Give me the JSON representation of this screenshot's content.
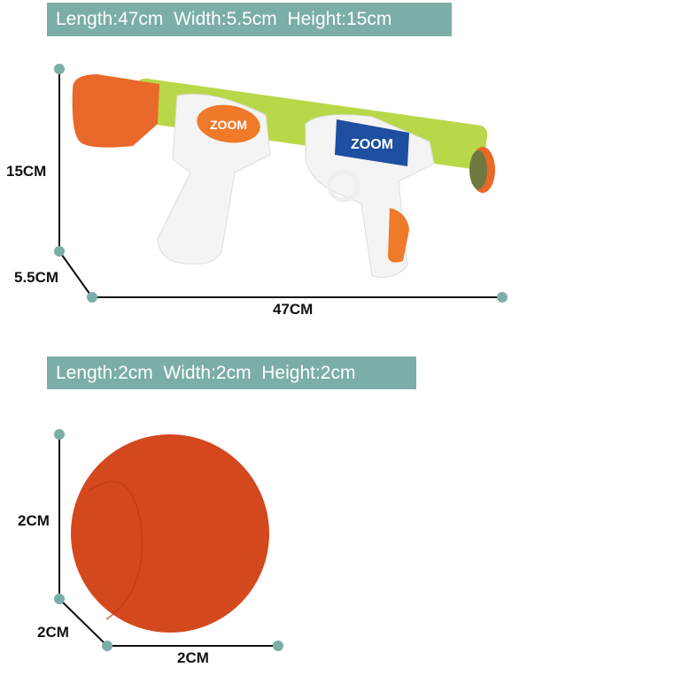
{
  "gun": {
    "banner": "Length:47cm  Width:5.5cm  Height:15cm",
    "height_label": "15CM",
    "width_label": "5.5CM",
    "length_label": "47CM",
    "logo_text": "ZOOM"
  },
  "ball": {
    "banner": "Length:2cm  Width:2cm  Height:2cm",
    "height_label": "2CM",
    "width_label": "2CM",
    "length_label": "2CM"
  },
  "colors": {
    "banner": "#7aaea7",
    "dot": "#7aaea7",
    "orange": "#e8692a",
    "ball": "#d4481e",
    "barrel": "#b8d84a",
    "blue": "#1f4fa0"
  }
}
